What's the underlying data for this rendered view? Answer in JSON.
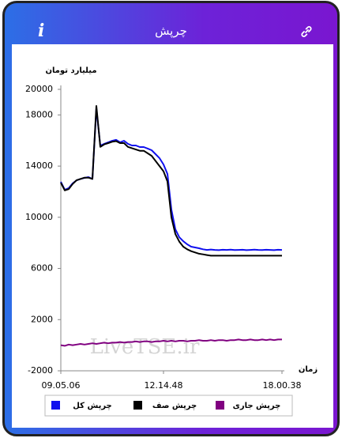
{
  "header": {
    "info": "i",
    "title": "چرپش"
  },
  "chart_data": {
    "type": "line",
    "y_label": "میلیارد تومان",
    "x_label": "زمان",
    "watermark": "LiveTSE.ir",
    "x": [
      "09.05.06",
      null,
      null,
      null,
      null,
      null,
      null,
      null,
      null,
      null,
      null,
      null,
      null,
      null,
      null,
      null,
      null,
      null,
      null,
      null,
      null,
      null,
      null,
      null,
      null,
      null,
      "12.14.48",
      null,
      null,
      null,
      null,
      null,
      null,
      null,
      null,
      null,
      null,
      null,
      null,
      null,
      null,
      null,
      null,
      null,
      null,
      null,
      null,
      null,
      null,
      null,
      null,
      null,
      null,
      null,
      null,
      null,
      "18.00.38"
    ],
    "ylim": [
      -2000,
      20000
    ],
    "yticks": [
      -2000,
      2000,
      6000,
      10000,
      14000,
      18000,
      20000
    ],
    "series": [
      {
        "name": "چرپش کل",
        "color": "#1010ee",
        "values": [
          12770,
          12150,
          12280,
          12650,
          12890,
          13000,
          13080,
          13140,
          13000,
          18500,
          15600,
          15740,
          15860,
          15980,
          16050,
          15860,
          15980,
          15740,
          15610,
          15610,
          15490,
          15490,
          15370,
          15240,
          14930,
          14620,
          14130,
          13390,
          10600,
          9060,
          8440,
          8130,
          7890,
          7700,
          7640,
          7580,
          7500,
          7450,
          7480,
          7450,
          7430,
          7460,
          7450,
          7470,
          7440,
          7450,
          7460,
          7430,
          7450,
          7470,
          7450,
          7440,
          7460,
          7450,
          7430,
          7460,
          7450
        ]
      },
      {
        "name": "چرپش صف",
        "color": "#000000",
        "values": [
          12700,
          12100,
          12200,
          12600,
          12900,
          13000,
          13100,
          13100,
          13000,
          18700,
          15500,
          15700,
          15800,
          15900,
          15950,
          15800,
          15800,
          15500,
          15400,
          15300,
          15200,
          15200,
          15000,
          14800,
          14400,
          14000,
          13600,
          12800,
          10000,
          8700,
          8100,
          7700,
          7500,
          7350,
          7250,
          7150,
          7100,
          7050,
          7000,
          7000,
          7000,
          7000,
          7000,
          7000,
          7000,
          7000,
          7000,
          7000,
          7000,
          7000,
          7000,
          7000,
          7000,
          7000,
          7000,
          7000,
          7000
        ]
      },
      {
        "name": "چرپش جاری",
        "color": "#800080",
        "values": [
          0,
          -50,
          50,
          0,
          50,
          100,
          50,
          100,
          150,
          100,
          150,
          200,
          150,
          200,
          200,
          250,
          200,
          250,
          250,
          300,
          250,
          300,
          300,
          250,
          300,
          300,
          350,
          300,
          350,
          300,
          350,
          350,
          300,
          350,
          350,
          400,
          350,
          350,
          400,
          350,
          400,
          400,
          350,
          400,
          400,
          450,
          400,
          400,
          450,
          400,
          400,
          450,
          400,
          450,
          400,
          450,
          450
        ]
      }
    ]
  }
}
